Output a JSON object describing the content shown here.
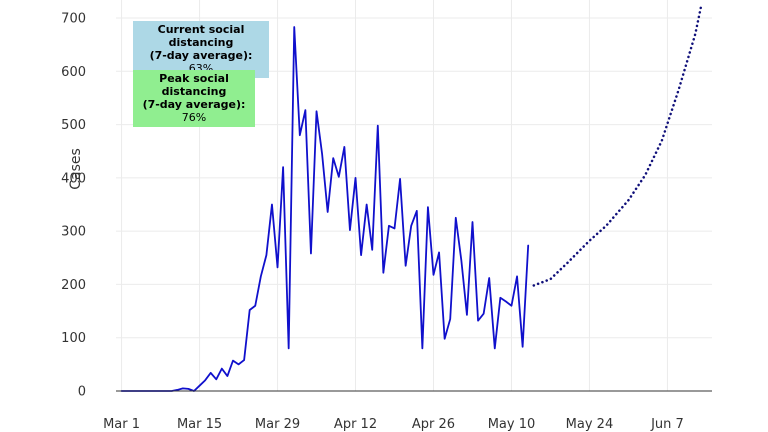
{
  "chart_data": {
    "type": "line",
    "title": "",
    "xlabel": "",
    "ylabel": "Cases",
    "ylim": [
      0,
      700
    ],
    "xlim": [
      "2020-02-29",
      "2020-06-15"
    ],
    "grid": true,
    "y_ticks": [
      0,
      100,
      200,
      300,
      400,
      500,
      600,
      700
    ],
    "x_ticks": [
      {
        "date": "2020-03-01",
        "label": "Mar 1"
      },
      {
        "date": "2020-03-15",
        "label": "Mar 15"
      },
      {
        "date": "2020-03-29",
        "label": "Mar 29"
      },
      {
        "date": "2020-04-12",
        "label": "Apr 12"
      },
      {
        "date": "2020-04-26",
        "label": "Apr 26"
      },
      {
        "date": "2020-05-10",
        "label": "May 10"
      },
      {
        "date": "2020-05-24",
        "label": "May 24"
      },
      {
        "date": "2020-06-07",
        "label": "Jun 7"
      }
    ],
    "series": [
      {
        "style": "solid",
        "color": "#1010cc",
        "points": [
          [
            "2020-03-01",
            0
          ],
          [
            "2020-03-02",
            0
          ],
          [
            "2020-03-03",
            0
          ],
          [
            "2020-03-04",
            0
          ],
          [
            "2020-03-05",
            0
          ],
          [
            "2020-03-06",
            0
          ],
          [
            "2020-03-07",
            0
          ],
          [
            "2020-03-08",
            0
          ],
          [
            "2020-03-09",
            0
          ],
          [
            "2020-03-10",
            0
          ],
          [
            "2020-03-11",
            2
          ],
          [
            "2020-03-12",
            5
          ],
          [
            "2020-03-13",
            4
          ],
          [
            "2020-03-14",
            0
          ],
          [
            "2020-03-15",
            10
          ],
          [
            "2020-03-16",
            20
          ],
          [
            "2020-03-17",
            34
          ],
          [
            "2020-03-18",
            22
          ],
          [
            "2020-03-19",
            42
          ],
          [
            "2020-03-20",
            28
          ],
          [
            "2020-03-21",
            57
          ],
          [
            "2020-03-22",
            50
          ],
          [
            "2020-03-23",
            58
          ],
          [
            "2020-03-24",
            152
          ],
          [
            "2020-03-25",
            160
          ],
          [
            "2020-03-26",
            215
          ],
          [
            "2020-03-27",
            255
          ],
          [
            "2020-03-28",
            350
          ],
          [
            "2020-03-29",
            232
          ],
          [
            "2020-03-30",
            420
          ],
          [
            "2020-03-31",
            80
          ],
          [
            "2020-04-01",
            683
          ],
          [
            "2020-04-02",
            480
          ],
          [
            "2020-04-03",
            527
          ],
          [
            "2020-04-04",
            258
          ],
          [
            "2020-04-05",
            525
          ],
          [
            "2020-04-06",
            445
          ],
          [
            "2020-04-07",
            336
          ],
          [
            "2020-04-08",
            437
          ],
          [
            "2020-04-09",
            402
          ],
          [
            "2020-04-10",
            458
          ],
          [
            "2020-04-11",
            302
          ],
          [
            "2020-04-12",
            400
          ],
          [
            "2020-04-13",
            255
          ],
          [
            "2020-04-14",
            350
          ],
          [
            "2020-04-15",
            265
          ],
          [
            "2020-04-16",
            498
          ],
          [
            "2020-04-17",
            222
          ],
          [
            "2020-04-18",
            310
          ],
          [
            "2020-04-19",
            305
          ],
          [
            "2020-04-20",
            398
          ],
          [
            "2020-04-21",
            235
          ],
          [
            "2020-04-22",
            310
          ],
          [
            "2020-04-23",
            338
          ],
          [
            "2020-04-24",
            80
          ],
          [
            "2020-04-25",
            345
          ],
          [
            "2020-04-26",
            218
          ],
          [
            "2020-04-27",
            260
          ],
          [
            "2020-04-28",
            98
          ],
          [
            "2020-04-29",
            135
          ],
          [
            "2020-04-30",
            325
          ],
          [
            "2020-05-01",
            245
          ],
          [
            "2020-05-02",
            143
          ],
          [
            "2020-05-03",
            317
          ],
          [
            "2020-05-04",
            132
          ],
          [
            "2020-05-05",
            145
          ],
          [
            "2020-05-06",
            212
          ],
          [
            "2020-05-07",
            80
          ],
          [
            "2020-05-08",
            175
          ],
          [
            "2020-05-09",
            168
          ],
          [
            "2020-05-10",
            160
          ],
          [
            "2020-05-11",
            215
          ],
          [
            "2020-05-12",
            83
          ],
          [
            "2020-05-13",
            273
          ]
        ]
      },
      {
        "style": "dotted",
        "color": "#10107a",
        "points": [
          [
            "2020-05-14",
            198
          ],
          [
            "2020-05-17",
            210
          ],
          [
            "2020-05-20",
            240
          ],
          [
            "2020-05-24",
            282
          ],
          [
            "2020-05-27",
            310
          ],
          [
            "2020-05-31",
            358
          ],
          [
            "2020-06-03",
            405
          ],
          [
            "2020-06-06",
            470
          ],
          [
            "2020-06-09",
            565
          ],
          [
            "2020-06-12",
            670
          ],
          [
            "2020-06-13",
            720
          ]
        ]
      }
    ]
  },
  "annotations": [
    {
      "title_lines": [
        "Current social distancing",
        "(7-day average):"
      ],
      "value": "63%",
      "background": "#add8e6"
    },
    {
      "title_lines": [
        "Peak social distancing",
        "(7-day average):"
      ],
      "value": "76%",
      "background": "#90ee90"
    }
  ],
  "colors": {
    "grid": "#ebebeb",
    "axis_line": "#333333"
  }
}
